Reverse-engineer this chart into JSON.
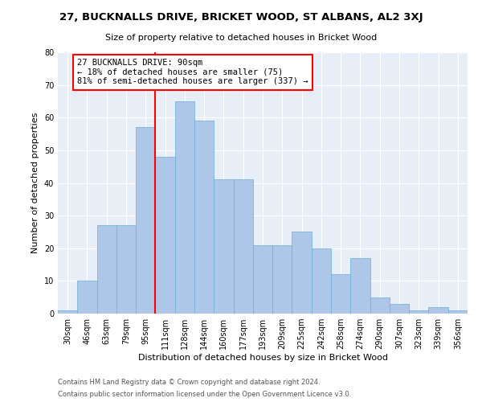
{
  "title1": "27, BUCKNALLS DRIVE, BRICKET WOOD, ST ALBANS, AL2 3XJ",
  "title2": "Size of property relative to detached houses in Bricket Wood",
  "xlabel": "Distribution of detached houses by size in Bricket Wood",
  "ylabel": "Number of detached properties",
  "bin_labels": [
    "30sqm",
    "46sqm",
    "63sqm",
    "79sqm",
    "95sqm",
    "111sqm",
    "128sqm",
    "144sqm",
    "160sqm",
    "177sqm",
    "193sqm",
    "209sqm",
    "225sqm",
    "242sqm",
    "258sqm",
    "274sqm",
    "290sqm",
    "307sqm",
    "323sqm",
    "339sqm",
    "356sqm"
  ],
  "bar_heights": [
    1,
    10,
    27,
    27,
    57,
    48,
    65,
    59,
    41,
    41,
    21,
    21,
    25,
    20,
    12,
    17,
    5,
    3,
    1,
    2,
    1
  ],
  "bar_color": "#aec6e8",
  "bar_edge_color": "#6aaed6",
  "bar_width": 1.0,
  "vline_x": 4.5,
  "vline_color": "red",
  "annotation_text": "27 BUCKNALLS DRIVE: 90sqm\n← 18% of detached houses are smaller (75)\n81% of semi-detached houses are larger (337) →",
  "annotation_box_color": "white",
  "annotation_box_edgecolor": "red",
  "ylim": [
    0,
    80
  ],
  "yticks": [
    0,
    10,
    20,
    30,
    40,
    50,
    60,
    70,
    80
  ],
  "background_color": "#e8eef8",
  "footer_line1": "Contains HM Land Registry data © Crown copyright and database right 2024.",
  "footer_line2": "Contains public sector information licensed under the Open Government Licence v3.0.",
  "title1_fontsize": 9.5,
  "title2_fontsize": 8,
  "xlabel_fontsize": 8,
  "ylabel_fontsize": 8,
  "tick_fontsize": 7,
  "annotation_fontsize": 7.5,
  "footer_fontsize": 6
}
